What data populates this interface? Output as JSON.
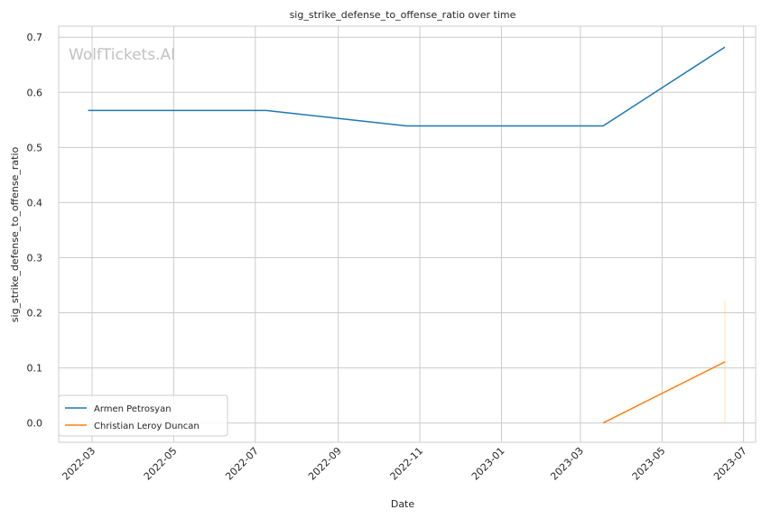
{
  "chart_data": {
    "type": "line",
    "title": "sig_strike_defense_to_offense_ratio over time",
    "xlabel": "Date",
    "ylabel": "sig_strike_defense_to_offense_ratio",
    "watermark": "WolfTickets.AI",
    "x_ticks": [
      "2022-03",
      "2022-05",
      "2022-07",
      "2022-09",
      "2022-11",
      "2023-01",
      "2023-03",
      "2023-05",
      "2023-07"
    ],
    "y_ticks": [
      "0.0",
      "0.1",
      "0.2",
      "0.3",
      "0.4",
      "0.5",
      "0.6",
      "0.7"
    ],
    "xlim": [
      "2022-02-04",
      "2023-07-10"
    ],
    "ylim": [
      -0.035,
      0.72
    ],
    "grid": true,
    "legend_position": "lower-left",
    "series": [
      {
        "name": "Armen Petrosyan",
        "color": "#1f77b4",
        "x": [
          "2022-02-26",
          "2022-07-09",
          "2022-10-22",
          "2023-03-18",
          "2023-06-17"
        ],
        "y": [
          0.567,
          0.567,
          0.539,
          0.539,
          0.682
        ]
      },
      {
        "name": "Christian Leroy Duncan",
        "color": "#ff7f0e",
        "x": [
          "2023-03-18",
          "2023-06-17"
        ],
        "y": [
          0.0,
          0.111
        ],
        "band": {
          "x": "2023-06-17",
          "low": 0.0,
          "high": 0.222
        }
      }
    ]
  }
}
